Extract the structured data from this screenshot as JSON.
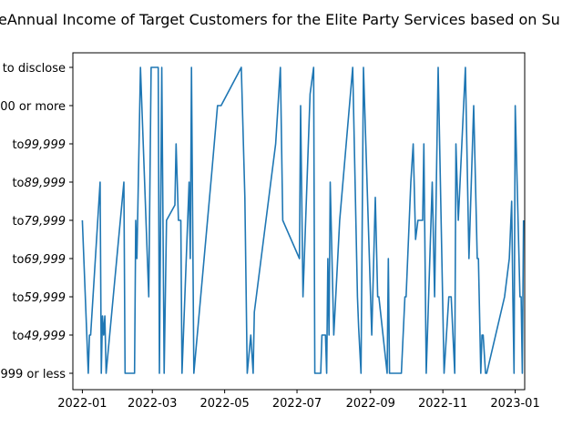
{
  "chart_data": {
    "type": "line",
    "title": "Annual Income of Target Customers for the Elite Party Services based on Su",
    "title_prefix": "e",
    "xlabel": "",
    "ylabel": "",
    "x_ticks": [
      "2022-01",
      "2022-03",
      "2022-05",
      "2022-07",
      "2022-09",
      "2022-11",
      "2023-01"
    ],
    "y_categories": [
      "999 or less",
      "to$49,999",
      "to$59,999",
      "to$69,999",
      "to$79,999",
      "to$89,999",
      "to$99,999",
      "00 or more",
      "to disclose"
    ],
    "x_range": [
      "2021-12-24",
      "2023-01-09"
    ],
    "grid": false,
    "series": [
      {
        "color": "#1f77b4",
        "points": [
          [
            "2022-01-01",
            4
          ],
          [
            "2022-01-06",
            0
          ],
          [
            "2022-01-07",
            1
          ],
          [
            "2022-01-08",
            1
          ],
          [
            "2022-01-16",
            5
          ],
          [
            "2022-01-17",
            0
          ],
          [
            "2022-01-18",
            1.5
          ],
          [
            "2022-01-19",
            1
          ],
          [
            "2022-01-20",
            1.5
          ],
          [
            "2022-01-21",
            0
          ],
          [
            "2022-02-05",
            5
          ],
          [
            "2022-02-06",
            0
          ],
          [
            "2022-02-14",
            0
          ],
          [
            "2022-02-15",
            4
          ],
          [
            "2022-02-16",
            3
          ],
          [
            "2022-02-19",
            8
          ],
          [
            "2022-02-26",
            2
          ],
          [
            "2022-02-28",
            8
          ],
          [
            "2022-03-06",
            8
          ],
          [
            "2022-03-07",
            0
          ],
          [
            "2022-03-09",
            8
          ],
          [
            "2022-03-11",
            0
          ],
          [
            "2022-03-13",
            4
          ],
          [
            "2022-03-20",
            4.4
          ],
          [
            "2022-03-21",
            6
          ],
          [
            "2022-03-23",
            4
          ],
          [
            "2022-03-25",
            4
          ],
          [
            "2022-03-26",
            0
          ],
          [
            "2022-04-01",
            5
          ],
          [
            "2022-04-02",
            3
          ],
          [
            "2022-04-03",
            8
          ],
          [
            "2022-04-05",
            0
          ],
          [
            "2022-04-20",
            5.2
          ],
          [
            "2022-04-25",
            7
          ],
          [
            "2022-04-28",
            7
          ],
          [
            "2022-05-15",
            8
          ],
          [
            "2022-05-18",
            4.6
          ],
          [
            "2022-05-20",
            0
          ],
          [
            "2022-05-23",
            1
          ],
          [
            "2022-05-25",
            0
          ],
          [
            "2022-05-26",
            1.6
          ],
          [
            "2022-06-13",
            6
          ],
          [
            "2022-06-17",
            8
          ],
          [
            "2022-06-19",
            4
          ],
          [
            "2022-07-03",
            3
          ],
          [
            "2022-07-04",
            7
          ],
          [
            "2022-07-06",
            2
          ],
          [
            "2022-07-12",
            7.3
          ],
          [
            "2022-07-15",
            8
          ],
          [
            "2022-07-16",
            0
          ],
          [
            "2022-07-21",
            0
          ],
          [
            "2022-07-22",
            1
          ],
          [
            "2022-07-25",
            1
          ],
          [
            "2022-07-26",
            0
          ],
          [
            "2022-07-27",
            3
          ],
          [
            "2022-07-28",
            1
          ],
          [
            "2022-07-29",
            5
          ],
          [
            "2022-08-01",
            1
          ],
          [
            "2022-08-06",
            4
          ],
          [
            "2022-08-17",
            8
          ],
          [
            "2022-08-21",
            2
          ],
          [
            "2022-08-22",
            1.2
          ],
          [
            "2022-08-24",
            0
          ],
          [
            "2022-08-26",
            8
          ],
          [
            "2022-09-02",
            1
          ],
          [
            "2022-09-05",
            4.6
          ],
          [
            "2022-09-07",
            2
          ],
          [
            "2022-09-08",
            2
          ],
          [
            "2022-09-15",
            0
          ],
          [
            "2022-09-16",
            3
          ],
          [
            "2022-09-17",
            0
          ],
          [
            "2022-09-27",
            0
          ],
          [
            "2022-09-30",
            2
          ],
          [
            "2022-10-01",
            2
          ],
          [
            "2022-10-05",
            5
          ],
          [
            "2022-10-07",
            6
          ],
          [
            "2022-10-09",
            3.5
          ],
          [
            "2022-10-11",
            4
          ],
          [
            "2022-10-15",
            4
          ],
          [
            "2022-10-16",
            6
          ],
          [
            "2022-10-18",
            0
          ],
          [
            "2022-10-23",
            5
          ],
          [
            "2022-10-25",
            2
          ],
          [
            "2022-10-28",
            8
          ],
          [
            "2022-11-02",
            0
          ],
          [
            "2022-11-06",
            2
          ],
          [
            "2022-11-08",
            2
          ],
          [
            "2022-11-11",
            0
          ],
          [
            "2022-11-12",
            6
          ],
          [
            "2022-11-14",
            4
          ],
          [
            "2022-11-20",
            8
          ],
          [
            "2022-11-23",
            3
          ],
          [
            "2022-11-27",
            7
          ],
          [
            "2022-11-30",
            3
          ],
          [
            "2022-12-01",
            3
          ],
          [
            "2022-12-03",
            0
          ],
          [
            "2022-12-04",
            1
          ],
          [
            "2022-12-05",
            1
          ],
          [
            "2022-12-07",
            0
          ],
          [
            "2022-12-08",
            0
          ],
          [
            "2022-12-23",
            2
          ],
          [
            "2022-12-27",
            3
          ],
          [
            "2022-12-29",
            4.5
          ],
          [
            "2022-12-30",
            2
          ],
          [
            "2022-12-31",
            0
          ],
          [
            "2023-01-01",
            7
          ],
          [
            "2023-01-05",
            2
          ],
          [
            "2023-01-06",
            2
          ],
          [
            "2023-01-07",
            0
          ],
          [
            "2023-01-08",
            4
          ]
        ]
      }
    ]
  }
}
